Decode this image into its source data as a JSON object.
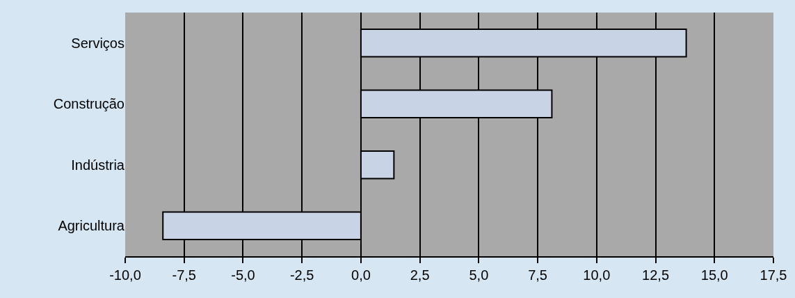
{
  "chart_data": {
    "type": "bar",
    "orientation": "horizontal",
    "categories": [
      "Serviços",
      "Construção",
      "Indústria",
      "Agricultura"
    ],
    "values": [
      13.8,
      8.1,
      1.4,
      -8.4
    ],
    "color": "#c9d3e6",
    "xlim": [
      -10,
      17.5
    ],
    "xticks": [
      {
        "value": -10,
        "label": "-10,0"
      },
      {
        "value": -7.5,
        "label": "-7,5"
      },
      {
        "value": -5,
        "label": "-5,0"
      },
      {
        "value": -2.5,
        "label": "-2,5"
      },
      {
        "value": 0,
        "label": "0,0"
      },
      {
        "value": 2.5,
        "label": "2,5"
      },
      {
        "value": 5,
        "label": "5,0"
      },
      {
        "value": 7.5,
        "label": "7,5"
      },
      {
        "value": 10,
        "label": "10,0"
      },
      {
        "value": 12.5,
        "label": "12,5"
      },
      {
        "value": 15,
        "label": "15,0"
      },
      {
        "value": 17.5,
        "label": "17,5"
      }
    ],
    "grid": "x"
  }
}
